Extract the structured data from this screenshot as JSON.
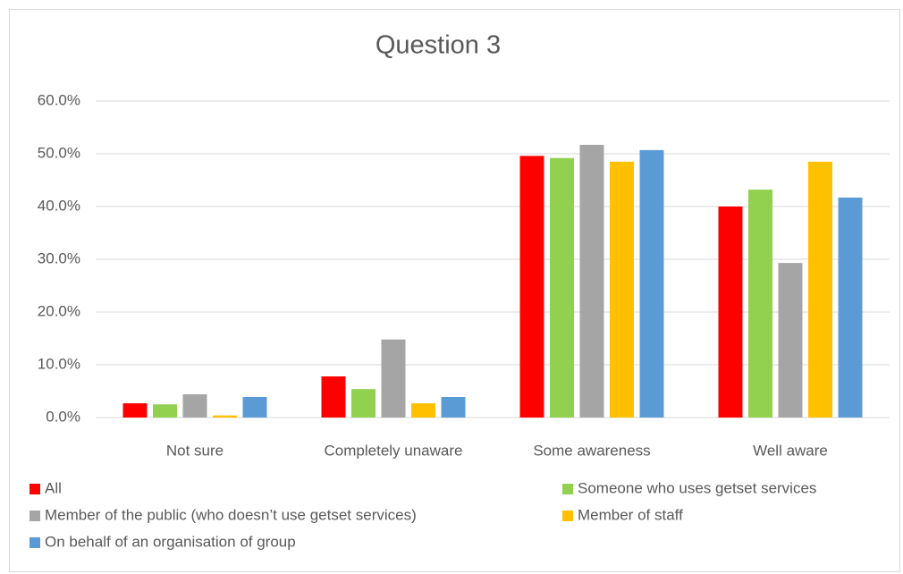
{
  "chart_data": {
    "type": "bar",
    "title": "Question 3",
    "categories": [
      "Not sure",
      "Completely unaware",
      "Some awareness",
      "Well aware"
    ],
    "series": [
      {
        "name": "All",
        "color": "#ff0000",
        "values": [
          2.7,
          7.8,
          49.6,
          40.0
        ]
      },
      {
        "name": "Someone who uses getset services",
        "color": "#92d050",
        "values": [
          2.5,
          5.4,
          49.2,
          43.2
        ]
      },
      {
        "name": "Member of the public (who doesn’t use getset services)",
        "color": "#a5a5a5",
        "values": [
          4.4,
          14.8,
          51.7,
          29.3
        ]
      },
      {
        "name": "Member of staff",
        "color": "#ffc000",
        "values": [
          0.4,
          2.7,
          48.5,
          48.5
        ]
      },
      {
        "name": "On behalf of an organisation of group",
        "color": "#5b9bd5",
        "values": [
          3.9,
          3.9,
          50.7,
          41.7
        ]
      }
    ],
    "ylim": [
      0,
      60
    ],
    "yticks": [
      {
        "value": 0,
        "label": "0.0%"
      },
      {
        "value": 10,
        "label": "10.0%"
      },
      {
        "value": 20,
        "label": "20.0%"
      },
      {
        "value": 30,
        "label": "30.0%"
      },
      {
        "value": 40,
        "label": "40.0%"
      },
      {
        "value": 50,
        "label": "50.0%"
      },
      {
        "value": 60,
        "label": "60.0%"
      }
    ],
    "grid": true,
    "legend": "bottom"
  }
}
